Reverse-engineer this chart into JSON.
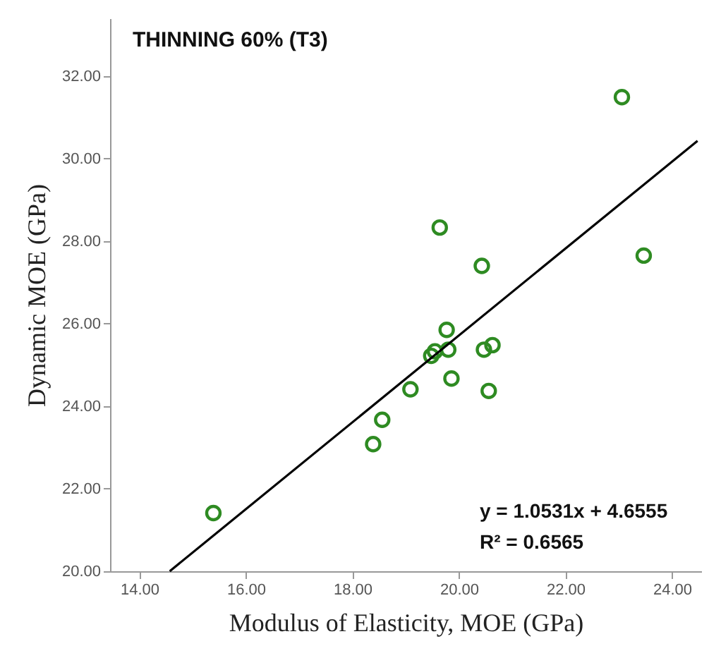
{
  "chart_data": {
    "type": "scatter",
    "title": "THINNING 60% (T3)",
    "xlabel": "Modulus of Elasticity, MOE (GPa)",
    "ylabel": "Dynamic MOE (GPa)",
    "annotations": [
      "y = 1.0531x + 4.6555",
      "R² = 0.6565"
    ],
    "xlim": [
      13.45,
      24.55
    ],
    "ylim": [
      20,
      33.4
    ],
    "xticks": [
      {
        "value": 14,
        "label": "14.00"
      },
      {
        "value": 16,
        "label": "16.00"
      },
      {
        "value": 18,
        "label": "18.00"
      },
      {
        "value": 20,
        "label": "20.00"
      },
      {
        "value": 22,
        "label": "22.00"
      },
      {
        "value": 24,
        "label": "24.00"
      }
    ],
    "yticks": [
      {
        "value": 20,
        "label": "20.00"
      },
      {
        "value": 22,
        "label": "22.00"
      },
      {
        "value": 24,
        "label": "24.00"
      },
      {
        "value": 26,
        "label": "26.00"
      },
      {
        "value": 28,
        "label": "28.00"
      },
      {
        "value": 30,
        "label": "30.00"
      },
      {
        "value": 32,
        "label": "32.00"
      }
    ],
    "grid": false,
    "series": [
      {
        "marker": "circle",
        "color": "#2e8b22",
        "x": [
          15.39,
          18.39,
          18.56,
          19.09,
          19.48,
          19.55,
          19.77,
          19.8,
          19.86,
          20.47,
          20.63,
          20.56,
          19.64,
          20.43,
          23.06,
          23.47
        ],
        "values": [
          21.41,
          23.08,
          23.67,
          24.41,
          25.22,
          25.33,
          25.85,
          25.37,
          24.67,
          25.37,
          25.48,
          24.37,
          28.33,
          27.4,
          31.49,
          27.65
        ]
      },
      {
        "type": "line",
        "color": "#000000",
        "line_style": "solid",
        "x": [
          14.57,
          24.48
        ],
        "values": [
          20.0,
          30.43
        ]
      }
    ]
  }
}
